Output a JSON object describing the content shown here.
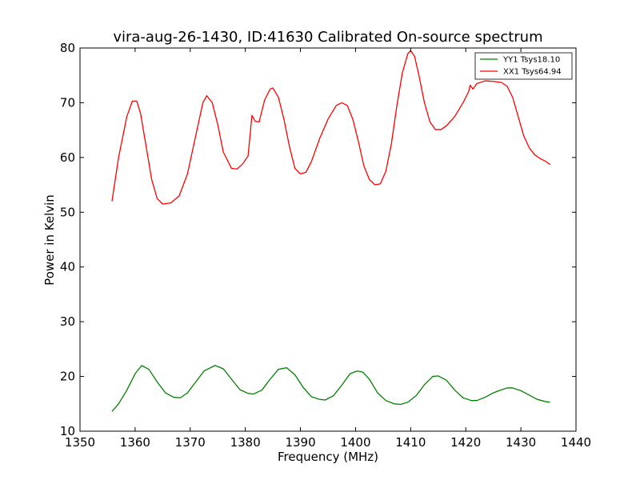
{
  "chart_data": {
    "type": "line",
    "title": "vira-aug-26-1430, ID:41630 Calibrated On-source spectrum",
    "xlabel": "Frequency (MHz)",
    "ylabel": "Power in Kelvin",
    "xlim": [
      1350,
      1440
    ],
    "ylim": [
      10,
      80
    ],
    "xticks": [
      1350,
      1360,
      1370,
      1380,
      1390,
      1400,
      1410,
      1420,
      1430,
      1440
    ],
    "yticks": [
      10,
      20,
      30,
      40,
      50,
      60,
      70,
      80
    ],
    "grid": false,
    "legend_position": "top-right",
    "series": [
      {
        "name": "YY1 Tsys18.10",
        "color": "#008000",
        "x": [
          1355.8,
          1357,
          1358.5,
          1360,
          1361.2,
          1362.5,
          1364,
          1365.5,
          1367,
          1368.2,
          1369.5,
          1371,
          1372.5,
          1374.5,
          1376,
          1377.5,
          1379,
          1380.5,
          1381.5,
          1383,
          1384.5,
          1386,
          1387.5,
          1389,
          1390.5,
          1392,
          1393.5,
          1394.5,
          1396,
          1397.5,
          1399,
          1400.3,
          1401.3,
          1402.5,
          1404,
          1405.5,
          1407,
          1408.2,
          1409.5,
          1411,
          1412.5,
          1414,
          1415,
          1416.5,
          1418,
          1419.5,
          1421,
          1422,
          1423.5,
          1425,
          1426,
          1427.5,
          1428.5,
          1430,
          1431.5,
          1433,
          1434.5,
          1435.3
        ],
        "y": [
          13.6,
          15.0,
          17.5,
          20.5,
          22.0,
          21.3,
          19.0,
          17.0,
          16.2,
          16.1,
          17.0,
          19.0,
          21.0,
          22.0,
          21.4,
          19.5,
          17.6,
          16.9,
          16.8,
          17.5,
          19.5,
          21.3,
          21.6,
          20.3,
          18.0,
          16.3,
          15.8,
          15.7,
          16.5,
          18.4,
          20.5,
          21.0,
          20.8,
          19.5,
          17.0,
          15.6,
          15.0,
          14.9,
          15.3,
          16.5,
          18.5,
          20.0,
          20.1,
          19.3,
          17.5,
          16.1,
          15.6,
          15.6,
          16.2,
          17.0,
          17.4,
          17.9,
          17.9,
          17.4,
          16.6,
          15.8,
          15.4,
          15.3
        ]
      },
      {
        "name": "XX1 Tsys64.94",
        "color": "#ff0000",
        "x": [
          1355.8,
          1357,
          1358.5,
          1359.5,
          1360.3,
          1361,
          1362,
          1363,
          1364,
          1365,
          1366.5,
          1368,
          1369.5,
          1371,
          1372.3,
          1373,
          1374,
          1375,
          1376,
          1377.5,
          1378.5,
          1379.5,
          1380.5,
          1381.2,
          1381.8,
          1382.5,
          1383.5,
          1384.5,
          1385,
          1386,
          1387,
          1388,
          1389,
          1390,
          1391,
          1392,
          1393.5,
          1395,
          1396.5,
          1397.5,
          1398.5,
          1399.5,
          1400.5,
          1401.5,
          1402.5,
          1403.5,
          1404.5,
          1405.5,
          1406.5,
          1407.5,
          1408.5,
          1409.5,
          1410,
          1410.7,
          1411.5,
          1412.5,
          1413.5,
          1414.5,
          1415.5,
          1416.5,
          1418,
          1419.5,
          1420.5,
          1420.8,
          1421.3,
          1422,
          1423.5,
          1425,
          1426.5,
          1427.5,
          1428.5,
          1429.5,
          1430.5,
          1431.5,
          1432.5,
          1433.5,
          1434.5,
          1435.3
        ],
        "y": [
          52.0,
          60.0,
          67.5,
          70.3,
          70.3,
          68.0,
          62.0,
          56.0,
          52.5,
          51.5,
          51.7,
          53.0,
          57.0,
          64.0,
          70.0,
          71.3,
          70.0,
          66.0,
          61.0,
          58.0,
          57.9,
          58.8,
          60.3,
          67.7,
          66.6,
          66.5,
          70.5,
          72.5,
          72.7,
          71.0,
          67.0,
          62.0,
          58.0,
          57.0,
          57.3,
          59.3,
          63.5,
          67.0,
          69.5,
          70.0,
          69.5,
          67.0,
          63.0,
          58.5,
          56.0,
          55.0,
          55.2,
          57.5,
          62.5,
          69.5,
          75.5,
          79.0,
          79.5,
          78.5,
          75.0,
          70.0,
          66.5,
          65.1,
          65.1,
          65.8,
          67.5,
          70.0,
          72.0,
          73.2,
          72.5,
          73.5,
          74.0,
          73.9,
          73.7,
          73.0,
          71.0,
          67.5,
          64.0,
          61.8,
          60.5,
          59.8,
          59.3,
          58.7
        ]
      }
    ]
  }
}
